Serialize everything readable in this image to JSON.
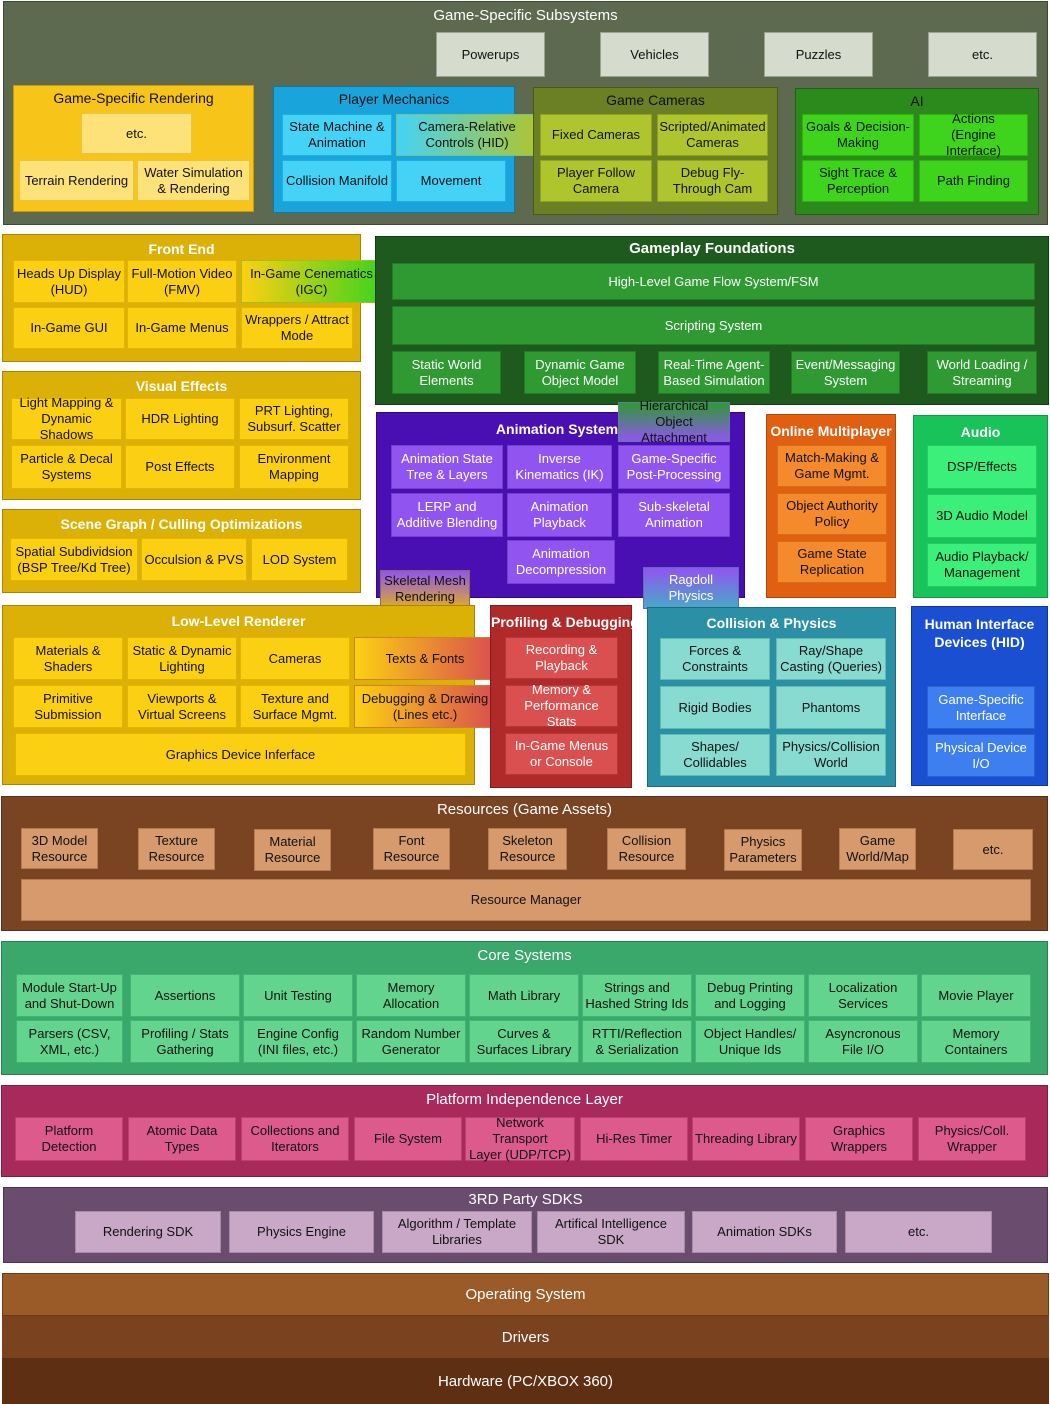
{
  "game_specific_subsystems": {
    "title": "Game-Specific Subsystems",
    "top_items": [
      "Powerups",
      "Vehicles",
      "Puzzles",
      "etc."
    ],
    "rendering": {
      "title": "Game-Specific Rendering",
      "items": [
        "etc.",
        "Terrain Rendering",
        "Water Simulation\n& Rendering"
      ]
    },
    "player_mechanics": {
      "title": "Player Mechanics",
      "items": [
        "State Machine &\nAnimation",
        "Camera-Relative\nControls (HID)",
        "Collision Manifold",
        "Movement"
      ]
    },
    "game_cameras": {
      "title": "Game Cameras",
      "items": [
        "Fixed Cameras",
        "Scripted/Animated\nCameras",
        "Player Follow\nCamera",
        "Debug Fly-\nThrough Cam"
      ]
    },
    "ai": {
      "title": "AI",
      "items": [
        "Goals & Decision-\nMaking",
        "Actions\n(Engine Interface)",
        "Sight Trace &\nPerception",
        "Path Finding"
      ]
    }
  },
  "front_end": {
    "title": "Front End",
    "items": [
      "Heads Up Display\n(HUD)",
      "Full-Motion Video\n(FMV)",
      "In-Game Cenematics\n(IGC)",
      "In-Game GUI",
      "In-Game Menus",
      "Wrappers / Attract\nMode"
    ]
  },
  "visual_effects": {
    "title": "Visual Effects",
    "items": [
      "Light Mapping &\nDynamic Shadows",
      "HDR Lighting",
      "PRT Lighting,\nSubsurf. Scatter",
      "Particle & Decal\nSystems",
      "Post Effects",
      "Environment\nMapping"
    ]
  },
  "scene_graph": {
    "title": "Scene Graph / Culling Optimizations",
    "items": [
      "Spatial Subdividsion\n(BSP Tree/Kd Tree)",
      "Occulsion & PVS",
      "LOD System"
    ]
  },
  "gameplay_foundations": {
    "title": "Gameplay Foundations",
    "items": [
      "High-Level Game Flow System/FSM",
      "Scripting System",
      "Static World\nElements",
      "Dynamic Game\nObject Model",
      "Real-Time Agent-\nBased Simulation",
      "Event/Messaging\nSystem",
      "World Loading /\nStreaming"
    ]
  },
  "animation": {
    "title": "Animation System",
    "items": [
      "Hierarchical\nObject Attachment",
      "Animation State\nTree & Layers",
      "Inverse\nKinematics (IK)",
      "Game-Specific\nPost-Processing",
      "LERP and\nAdditive Blending",
      "Animation\nPlayback",
      "Sub-skeletal\nAnimation",
      "Animation\nDecompression",
      "Skeletal Mesh\nRendering",
      "Ragdoll\nPhysics"
    ]
  },
  "online_multiplayer": {
    "title": "Online Multiplayer",
    "items": [
      "Match-Making &\nGame Mgmt.",
      "Object Authority\nPolicy",
      "Game State\nReplication"
    ]
  },
  "audio": {
    "title": "Audio",
    "items": [
      "DSP/Effects",
      "3D Audio Model",
      "Audio Playback/\nManagement"
    ]
  },
  "low_level_renderer": {
    "title": "Low-Level Renderer",
    "items": [
      "Materials &\nShaders",
      "Static & Dynamic\nLighting",
      "Cameras",
      "Texts & Fonts",
      "Primitive\nSubmission",
      "Viewports &\nVirtual Screens",
      "Texture and\nSurface Mgmt.",
      "Debugging & Drawing\n(Lines etc.)",
      "Graphics Device Inferface"
    ]
  },
  "profiling": {
    "title": "Profiling & Debugging",
    "items": [
      "Recording &\nPlayback",
      "Memory &\nPerformance Stats",
      "In-Game Menus\nor Console"
    ]
  },
  "collision": {
    "title": "Collision & Physics",
    "items": [
      "Forces &\nConstraints",
      "Ray/Shape\nCasting (Queries)",
      "Rigid Bodies",
      "Phantoms",
      "Shapes/\nCollidables",
      "Physics/Collision\nWorld"
    ]
  },
  "hid": {
    "title": "Human Interface\nDevices (HID)",
    "items": [
      "Game-Specific\nInterface",
      "Physical Device\nI/O"
    ]
  },
  "resources": {
    "title": "Resources (Game Assets)",
    "items": [
      "3D Model\nResource",
      "Texture\nResource",
      "Material\nResource",
      "Font\nResource",
      "Skeleton\nResource",
      "Collision\nResource",
      "Physics\nParameters",
      "Game\nWorld/Map",
      "etc."
    ],
    "manager": "Resource Manager"
  },
  "core_systems": {
    "title": "Core Systems",
    "items": [
      "Module Start-Up\nand Shut-Down",
      "Assertions",
      "Unit Testing",
      "Memory\nAllocation",
      "Math Library",
      "Strings and\nHashed String Ids",
      "Debug Printing\nand Logging",
      "Localization\nServices",
      "Movie Player",
      "Parsers (CSV,\nXML, etc.)",
      "Profiling / Stats\nGathering",
      "Engine Config\n(INI files, etc.)",
      "Random Number\nGenerator",
      "Curves &\nSurfaces Library",
      "RTTI/Reflection\n& Serialization",
      "Object Handles/\nUnique Ids",
      "Asyncronous\nFile I/O",
      "Memory\nContainers"
    ]
  },
  "platform_independence": {
    "title": "Platform Independence Layer",
    "items": [
      "Platform\nDetection",
      "Atomic Data\nTypes",
      "Collections and\nIterators",
      "File System",
      "Network Transport\nLayer (UDP/TCP)",
      "Hi-Res Timer",
      "Threading Library",
      "Graphics\nWrappers",
      "Physics/Coll.\nWrapper"
    ]
  },
  "third_party": {
    "title": "3RD Party SDKS",
    "items": [
      "Rendering SDK",
      "Physics Engine",
      "Algorithm / Template\nLibraries",
      "Artifical Intelligence\nSDK",
      "Animation SDKs",
      "etc."
    ]
  },
  "bottom_layers": {
    "os": "Operating System",
    "drivers": "Drivers",
    "hardware": "Hardware (PC/XBOX 360)"
  }
}
